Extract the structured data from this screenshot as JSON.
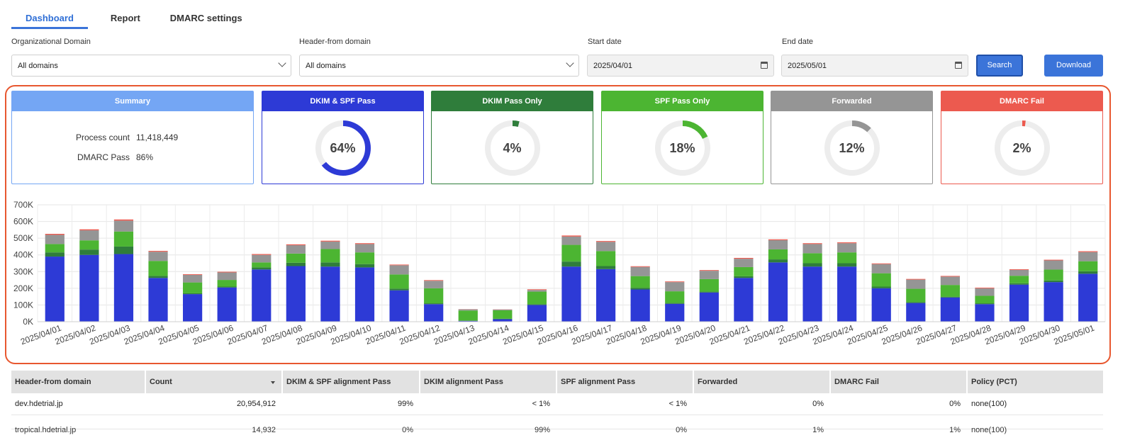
{
  "tabs": [
    {
      "label": "Dashboard",
      "active": true
    },
    {
      "label": "Report",
      "active": false
    },
    {
      "label": "DMARC settings",
      "active": false
    }
  ],
  "filters": {
    "org_domain": {
      "label": "Organizational Domain",
      "value": "All domains"
    },
    "header_from": {
      "label": "Header-from domain",
      "value": "All domains"
    },
    "start_date": {
      "label": "Start date",
      "value": "2025/04/01"
    },
    "end_date": {
      "label": "End date",
      "value": "2025/05/01"
    },
    "search_label": "Search",
    "download_label": "Download"
  },
  "summary": {
    "title": "Summary",
    "process_count_label": "Process count",
    "process_count": "11,418,449",
    "dmarc_pass_label": "DMARC Pass",
    "dmarc_pass": "86%"
  },
  "cards": [
    {
      "title": "DKIM & SPF Pass",
      "percent": 64,
      "label": "64%",
      "color": "#2d3ad6"
    },
    {
      "title": "DKIM Pass Only",
      "percent": 4,
      "label": "4%",
      "color": "#2f7d3b"
    },
    {
      "title": "SPF Pass Only",
      "percent": 18,
      "label": "18%",
      "color": "#4cb532"
    },
    {
      "title": "Forwarded",
      "percent": 12,
      "label": "12%",
      "color": "#959595"
    },
    {
      "title": "DMARC Fail",
      "percent": 2,
      "label": "2%",
      "color": "#ec5a4f"
    }
  ],
  "colors": {
    "summary": "#74a6f4",
    "track": "#ededed"
  },
  "chart_data": {
    "type": "bar",
    "stacked": true,
    "categories": [
      "2025/04/01",
      "2025/04/02",
      "2025/04/03",
      "2025/04/04",
      "2025/04/05",
      "2025/04/06",
      "2025/04/07",
      "2025/04/08",
      "2025/04/09",
      "2025/04/10",
      "2025/04/11",
      "2025/04/12",
      "2025/04/13",
      "2025/04/14",
      "2025/04/15",
      "2025/04/16",
      "2025/04/17",
      "2025/04/18",
      "2025/04/19",
      "2025/04/20",
      "2025/04/21",
      "2025/04/22",
      "2025/04/23",
      "2025/04/24",
      "2025/04/25",
      "2025/04/26",
      "2025/04/27",
      "2025/04/28",
      "2025/04/29",
      "2025/04/30",
      "2025/05/01"
    ],
    "ylim": [
      0,
      700000
    ],
    "yticks": [
      0,
      100000,
      200000,
      300000,
      400000,
      500000,
      600000,
      700000
    ],
    "ytick_labels": [
      "0K",
      "100K",
      "200K",
      "300K",
      "400K",
      "500K",
      "600K",
      "700K"
    ],
    "grid": true,
    "series": [
      {
        "name": "DKIM & SPF Pass",
        "color": "#2d3ad6",
        "values": [
          390000,
          400000,
          405000,
          262000,
          165000,
          205000,
          313000,
          333000,
          330000,
          325000,
          188000,
          105000,
          5000,
          15000,
          100000,
          330000,
          315000,
          193000,
          107000,
          175000,
          262000,
          355000,
          330000,
          330000,
          200000,
          112000,
          145000,
          105000,
          222000,
          237000,
          287000
        ]
      },
      {
        "name": "DKIM Pass Only",
        "color": "#2f7d3b",
        "values": [
          25000,
          32000,
          45000,
          12000,
          5000,
          5000,
          12000,
          20000,
          25000,
          20000,
          10000,
          5000,
          2000,
          3000,
          5000,
          30000,
          18000,
          10000,
          5000,
          5000,
          10000,
          18000,
          20000,
          20000,
          10000,
          5000,
          5000,
          5000,
          8000,
          10000,
          15000
        ]
      },
      {
        "name": "SPF Pass Only",
        "color": "#4cb532",
        "values": [
          50000,
          55000,
          90000,
          90000,
          65000,
          40000,
          30000,
          55000,
          80000,
          70000,
          85000,
          90000,
          60000,
          50000,
          75000,
          100000,
          90000,
          70000,
          70000,
          75000,
          55000,
          60000,
          60000,
          65000,
          80000,
          80000,
          70000,
          45000,
          45000,
          65000,
          60000
        ]
      },
      {
        "name": "Forwarded",
        "color": "#959595",
        "values": [
          55000,
          60000,
          65000,
          55000,
          45000,
          45000,
          45000,
          50000,
          45000,
          50000,
          55000,
          45000,
          7000,
          5000,
          10000,
          50000,
          55000,
          55000,
          55000,
          50000,
          50000,
          55000,
          55000,
          55000,
          55000,
          55000,
          50000,
          45000,
          35000,
          55000,
          55000
        ]
      },
      {
        "name": "DMARC Fail",
        "color": "#ec5a4f",
        "values": [
          6000,
          6000,
          7000,
          5000,
          4000,
          4000,
          5000,
          5000,
          5000,
          5000,
          4000,
          4000,
          1000,
          1000,
          4000,
          6000,
          5000,
          4000,
          4000,
          4000,
          5000,
          5000,
          5000,
          5000,
          4000,
          4000,
          4000,
          4000,
          4000,
          4000,
          5000
        ]
      }
    ]
  },
  "table": {
    "columns": [
      "Header-from domain",
      "Count",
      "DKIM & SPF alignment Pass",
      "DKIM alignment Pass",
      "SPF alignment Pass",
      "Forwarded",
      "DMARC Fail",
      "Policy (PCT)"
    ],
    "rows": [
      [
        "dev.hdetrial.jp",
        "20,954,912",
        "99%",
        "< 1%",
        "< 1%",
        "0%",
        "0%",
        "none(100)"
      ],
      [
        "tropical.hdetrial.jp",
        "14,932",
        "0%",
        "99%",
        "0%",
        "1%",
        "1%",
        "none(100)"
      ]
    ]
  }
}
